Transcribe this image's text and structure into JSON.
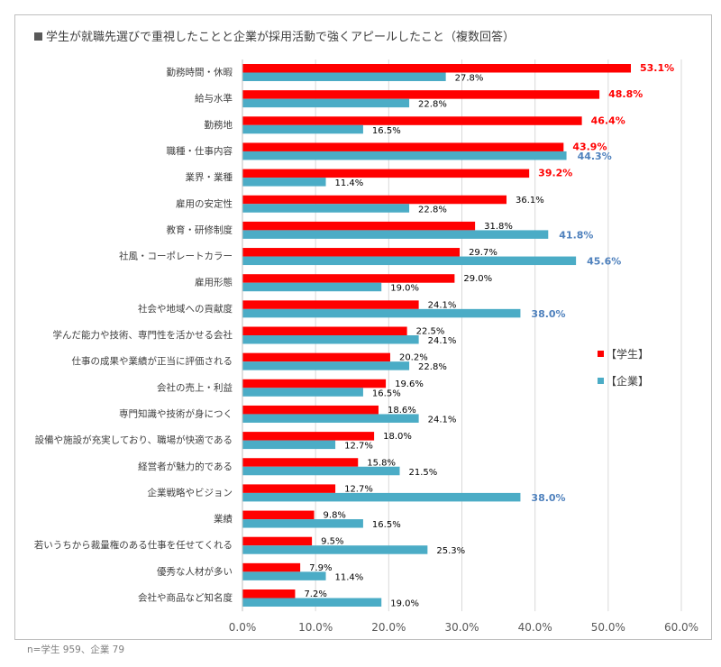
{
  "title": "学生が就職先選びで重視したことと企業が採用活動で強くアピールしたこと（複数回答）",
  "footnote": "n=学生 959、企業 79",
  "colors": {
    "student": "#ff0000",
    "company": "#4bacc6",
    "company_label": "#4f81bd",
    "grid": "#d9d9d9"
  },
  "chart_data": {
    "type": "bar",
    "orientation": "horizontal",
    "title": "学生が就職先選びで重視したことと企業が採用活動で強くアピールしたこと（複数回答）",
    "categories": [
      "勤務時間・休暇",
      "給与水準",
      "勤務地",
      "職種・仕事内容",
      "業界・業種",
      "雇用の安定性",
      "教育・研修制度",
      "社風・コーポレートカラー",
      "雇用形態",
      "社会や地域への貢献度",
      "学んだ能力や技術、専門性を活かせる会社",
      "仕事の成果や業績が正当に評価される",
      "会社の売上・利益",
      "専門知識や技術が身につく",
      "設備や施設が充実しており、職場が快適である",
      "経営者が魅力的である",
      "企業戦略やビジョン",
      "業績",
      "若いうちから裁量権のある仕事を任せてくれる",
      "優秀な人材が多い",
      "会社や商品など知名度"
    ],
    "series": [
      {
        "name": "【学生】",
        "values": [
          53.1,
          48.8,
          46.4,
          43.9,
          39.2,
          36.1,
          31.8,
          29.7,
          29.0,
          24.1,
          22.5,
          20.2,
          19.6,
          18.6,
          18.0,
          15.8,
          12.7,
          9.8,
          9.5,
          7.9,
          7.2
        ],
        "highlight": [
          true,
          true,
          true,
          true,
          true,
          false,
          false,
          false,
          false,
          false,
          false,
          false,
          false,
          false,
          false,
          false,
          false,
          false,
          false,
          false,
          false
        ]
      },
      {
        "name": "【企業】",
        "values": [
          27.8,
          22.8,
          16.5,
          44.3,
          11.4,
          22.8,
          41.8,
          45.6,
          19.0,
          38.0,
          24.1,
          22.8,
          16.5,
          24.1,
          12.7,
          21.5,
          38.0,
          16.5,
          25.3,
          11.4,
          19.0
        ],
        "highlight": [
          false,
          false,
          false,
          true,
          false,
          false,
          true,
          true,
          false,
          true,
          false,
          false,
          false,
          false,
          false,
          false,
          true,
          false,
          false,
          false,
          false
        ]
      }
    ],
    "xlim": [
      0,
      60
    ],
    "x_ticks": [
      "0.0%",
      "10.0%",
      "20.0%",
      "30.0%",
      "40.0%",
      "50.0%",
      "60.0%"
    ],
    "x_tick_values": [
      0,
      10,
      20,
      30,
      40,
      50,
      60
    ],
    "grid": true,
    "legend_position": "right"
  }
}
